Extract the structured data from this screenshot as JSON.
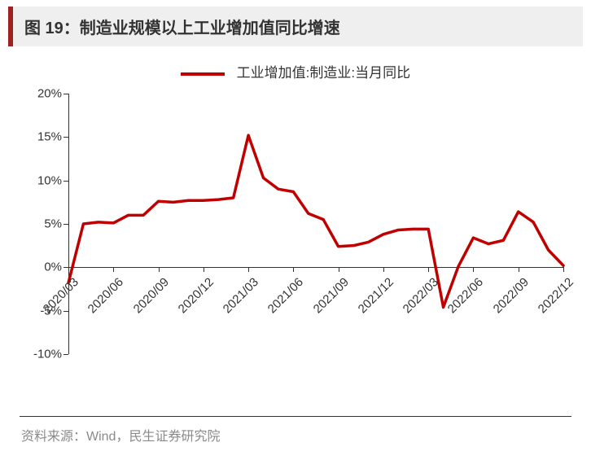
{
  "title": "图 19：制造业规模以上工业增加值同比增速",
  "source": "资料来源：Wind，民生证券研究院",
  "chart": {
    "type": "line",
    "legend_label": "工业增加值:制造业:当月同比",
    "line_color": "#c00000",
    "line_width": 3.5,
    "background_color": "#ffffff",
    "axis_color": "#333333",
    "text_color": "#333333",
    "y": {
      "min": -10,
      "max": 20,
      "ticks": [
        -10,
        -5,
        0,
        5,
        10,
        15,
        20
      ],
      "tick_labels": [
        "-10%",
        "-5%",
        "0%",
        "5%",
        "10%",
        "15%",
        "20%"
      ],
      "zero_axis_value": 0,
      "label_fontsize": 15
    },
    "x": {
      "categories": [
        "2020/03",
        "2020/04",
        "2020/05",
        "2020/06",
        "2020/07",
        "2020/08",
        "2020/09",
        "2020/10",
        "2020/11",
        "2020/12",
        "2021/01",
        "2021/02",
        "2021/03",
        "2021/04",
        "2021/05",
        "2021/06",
        "2021/07",
        "2021/08",
        "2021/09",
        "2021/10",
        "2021/11",
        "2021/12",
        "2022/01",
        "2022/02",
        "2022/03",
        "2022/04",
        "2022/05",
        "2022/06",
        "2022/07",
        "2022/08",
        "2022/09",
        "2022/10",
        "2022/11",
        "2022/12"
      ],
      "tick_indices": [
        0,
        3,
        6,
        9,
        12,
        15,
        18,
        21,
        24,
        27,
        30,
        33
      ],
      "tick_labels": [
        "2020/03",
        "2020/06",
        "2020/09",
        "2020/12",
        "2021/03",
        "2021/06",
        "2021/09",
        "2021/12",
        "2022/03",
        "2022/06",
        "2022/09",
        "2022/12"
      ],
      "label_fontsize": 15,
      "label_rotation_deg": -45
    },
    "series": {
      "values": [
        -1.8,
        5.0,
        5.2,
        5.1,
        6.0,
        6.0,
        7.6,
        7.5,
        7.7,
        7.7,
        7.8,
        8.0,
        15.2,
        10.3,
        9.0,
        8.7,
        6.2,
        5.5,
        2.4,
        2.5,
        2.9,
        3.8,
        4.3,
        4.4,
        4.4,
        -4.6,
        0.1,
        3.4,
        2.7,
        3.1,
        6.4,
        5.2,
        2.0,
        0.2
      ]
    }
  }
}
